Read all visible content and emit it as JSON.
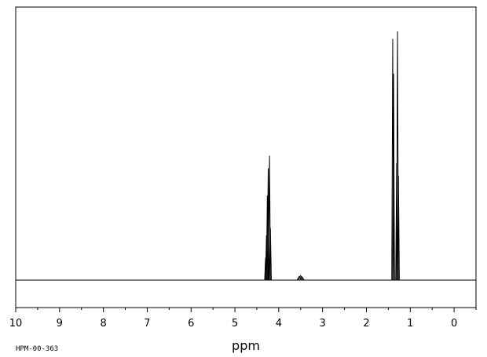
{
  "chart_data": {
    "type": "line",
    "title": "",
    "xlabel": "ppm",
    "ylabel": "",
    "xlim": [
      10,
      -0.5
    ],
    "x_reversed": true,
    "ylim": [
      0,
      1
    ],
    "grid": false,
    "xticks": [
      10,
      9,
      8,
      7,
      6,
      5,
      4,
      3,
      2,
      1,
      0
    ],
    "xtick_labels": [
      "10",
      "9",
      "8",
      "7",
      "6",
      "5",
      "4",
      "3",
      "2",
      "1",
      "0"
    ],
    "series": [
      {
        "peaks": [
          {
            "x": 4.3,
            "y": 0.09
          },
          {
            "x": 4.28,
            "y": 0.18
          },
          {
            "x": 4.26,
            "y": 0.34
          },
          {
            "x": 4.24,
            "y": 0.45
          },
          {
            "x": 4.21,
            "y": 0.5
          },
          {
            "x": 4.19,
            "y": 0.21
          },
          {
            "x": 3.53,
            "y": 0.015
          },
          {
            "x": 3.5,
            "y": 0.018
          },
          {
            "x": 3.47,
            "y": 0.013
          },
          {
            "x": 1.4,
            "y": 0.97
          },
          {
            "x": 1.38,
            "y": 0.83
          },
          {
            "x": 1.31,
            "y": 0.47
          },
          {
            "x": 1.29,
            "y": 1.0
          },
          {
            "x": 1.27,
            "y": 0.42
          }
        ]
      }
    ]
  },
  "footer": {
    "code": "HPM-00-363"
  }
}
